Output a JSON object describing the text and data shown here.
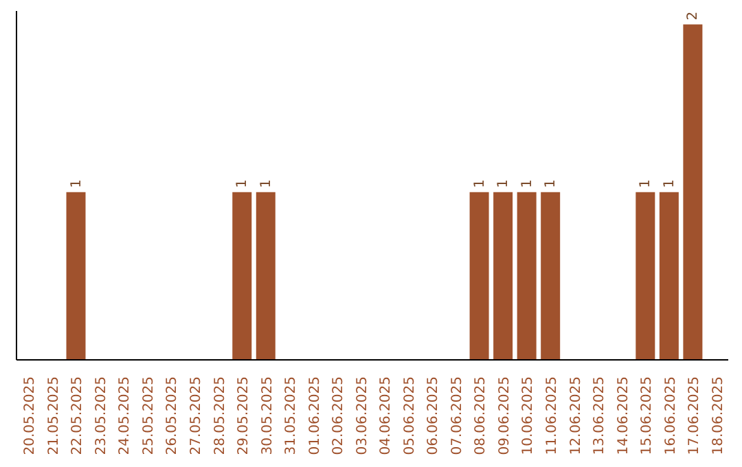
{
  "chart_data": {
    "type": "bar",
    "categories": [
      "20.05.2025",
      "21.05.2025",
      "22.05.2025",
      "23.05.2025",
      "24.05.2025",
      "25.05.2025",
      "26.05.2025",
      "27.05.2025",
      "28.05.2025",
      "29.05.2025",
      "30.05.2025",
      "31.05.2025",
      "01.06.2025",
      "02.06.2025",
      "03.06.2025",
      "04.06.2025",
      "05.06.2025",
      "06.06.2025",
      "07.06.2025",
      "08.06.2025",
      "09.06.2025",
      "10.06.2025",
      "11.06.2025",
      "12.06.2025",
      "13.06.2025",
      "14.06.2025",
      "15.06.2025",
      "16.06.2025",
      "17.06.2025",
      "18.06.2025"
    ],
    "values": [
      0,
      0,
      1,
      0,
      0,
      0,
      0,
      0,
      0,
      1,
      1,
      0,
      0,
      0,
      0,
      0,
      0,
      0,
      0,
      1,
      1,
      1,
      1,
      0,
      0,
      0,
      1,
      1,
      2,
      0
    ],
    "value_labels": [
      null,
      null,
      "1",
      null,
      null,
      null,
      null,
      null,
      null,
      "1",
      "1",
      null,
      null,
      null,
      null,
      null,
      null,
      null,
      null,
      "1",
      "1",
      "1",
      "1",
      null,
      null,
      null,
      "1",
      "1",
      "2",
      null
    ],
    "color": "#a0522d",
    "tick_labels": "x"
  }
}
